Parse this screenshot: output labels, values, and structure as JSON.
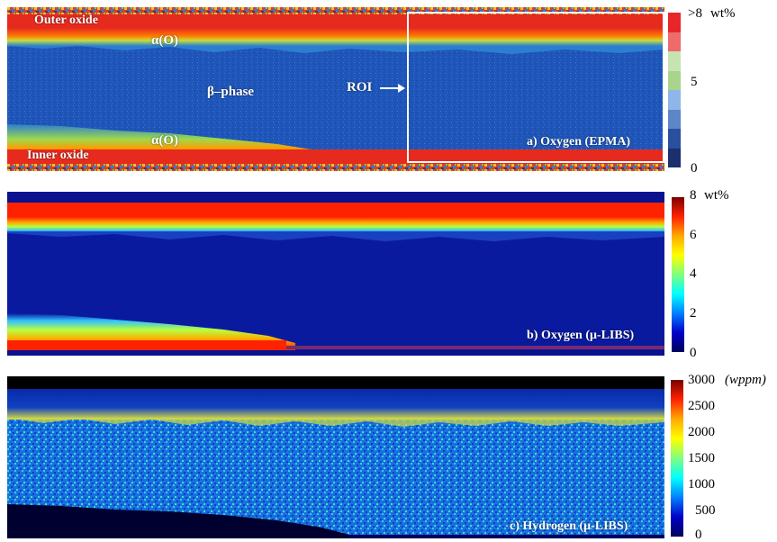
{
  "panels": {
    "a": {
      "caption": "a) Oxygen (EPMA)",
      "labels": {
        "outer_oxide": "Outer oxide",
        "alpha_top": "α(O)",
        "beta_phase": "β–phase",
        "roi": "ROI",
        "alpha_bottom": "α(O)",
        "inner_oxide": "Inner oxide"
      },
      "colorbar": {
        "unit": "wt%",
        "ticks": [
          ">8",
          "5",
          "0"
        ],
        "colors": [
          "#e8262a",
          "#ef6b6b",
          "#c7e3b4",
          "#a8d48c",
          "#8fb6e8",
          "#5d86c9",
          "#2a4f9c",
          "#1c2f6e"
        ]
      }
    },
    "b": {
      "caption": "b) Oxygen (μ-LIBS)",
      "colorbar": {
        "unit": "wt%",
        "ticks": [
          "8",
          "6",
          "4",
          "2",
          "0"
        ],
        "colors": [
          "#7a0000",
          "#ff2200",
          "#ffaa00",
          "#ffff00",
          "#7fff7f",
          "#00ffff",
          "#0080ff",
          "#0000c8",
          "#000060"
        ]
      }
    },
    "c": {
      "caption": "c) Hydrogen (μ-LIBS)",
      "colorbar": {
        "unit": "(wppm)",
        "ticks": [
          "3000",
          "2500",
          "2000",
          "1500",
          "1000",
          "500",
          "0"
        ],
        "colors": [
          "#7a0000",
          "#ff2200",
          "#ffaa00",
          "#ffff00",
          "#7fff7f",
          "#00ffff",
          "#0080ff",
          "#0000c8",
          "#000060"
        ]
      }
    }
  },
  "chart_data": [
    {
      "type": "heatmap",
      "title": "a) Oxygen (EPMA)",
      "colorbar_range": [
        0,
        8
      ],
      "colorbar_unit": "wt%",
      "colorbar_ticks": [
        ">8",
        "5",
        "0"
      ],
      "regions": [
        "Outer oxide",
        "α(O)",
        "β–phase",
        "α(O)",
        "Inner oxide"
      ],
      "annotations": [
        "ROI"
      ]
    },
    {
      "type": "heatmap",
      "title": "b) Oxygen (μ-LIBS)",
      "colorbar_range": [
        0,
        8
      ],
      "colorbar_unit": "wt%",
      "colorbar_ticks": [
        8,
        6,
        4,
        2,
        0
      ]
    },
    {
      "type": "heatmap",
      "title": "c) Hydrogen (μ-LIBS)",
      "colorbar_range": [
        0,
        3000
      ],
      "colorbar_unit": "wppm",
      "colorbar_ticks": [
        3000,
        2500,
        2000,
        1500,
        1000,
        500,
        0
      ]
    }
  ]
}
